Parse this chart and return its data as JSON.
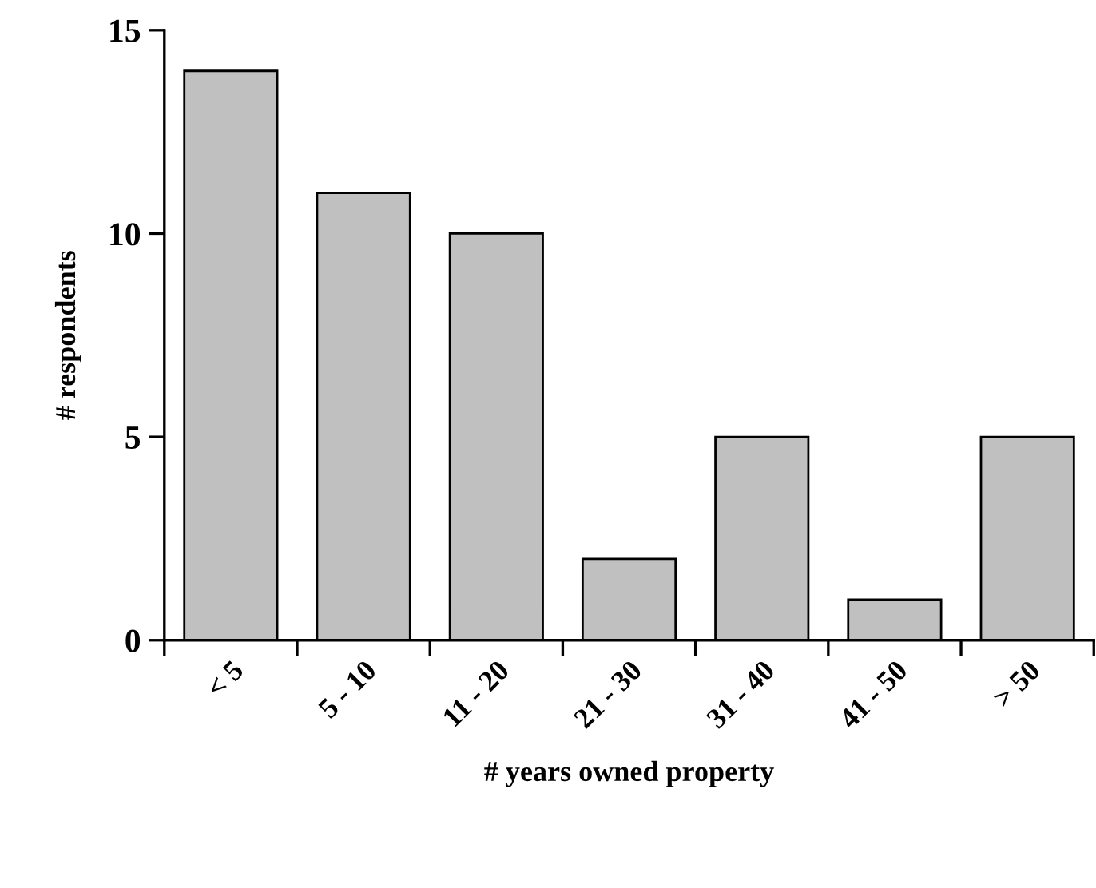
{
  "chart_data": {
    "type": "bar",
    "xlabel": "# years owned property",
    "ylabel": "# respondents",
    "categories": [
      "< 5",
      "5 - 10",
      "11 - 20",
      "21 - 30",
      "31 - 40",
      "41 - 50",
      "> 50"
    ],
    "values": [
      14,
      11,
      10,
      2,
      5,
      1,
      5
    ],
    "color": "#c0c0c0",
    "ylim": [
      0,
      15
    ],
    "yticks": [
      0,
      5,
      10,
      15
    ],
    "grid": false,
    "legend": false
  }
}
